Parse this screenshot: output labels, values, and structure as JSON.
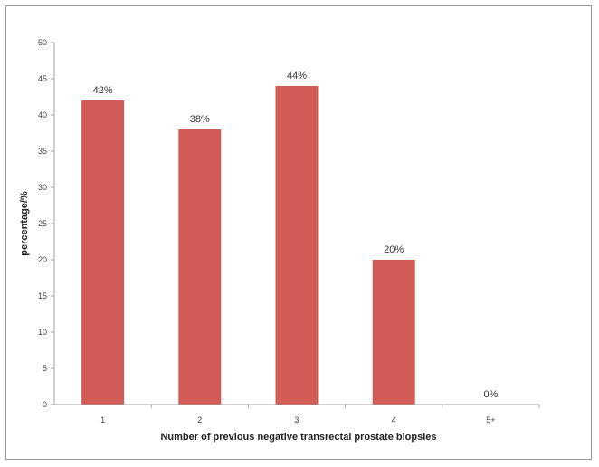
{
  "chart_data": {
    "type": "bar",
    "title": "",
    "xlabel": "Number of previous negative transrectal prostate biopsies",
    "ylabel": "percentage/%",
    "ylim": [
      0,
      50
    ],
    "yticks": [
      "0",
      "5",
      "10",
      "15",
      "20",
      "25",
      "30",
      "35",
      "40",
      "45",
      "50"
    ],
    "categories": [
      "1",
      "2",
      "3",
      "4",
      "5+"
    ],
    "values": [
      42,
      38,
      44,
      20,
      0
    ],
    "data_labels": [
      "42%",
      "38%",
      "44%",
      "20%",
      "0%"
    ],
    "bar_color": "#d15b55",
    "grid": false,
    "legend": "none"
  }
}
